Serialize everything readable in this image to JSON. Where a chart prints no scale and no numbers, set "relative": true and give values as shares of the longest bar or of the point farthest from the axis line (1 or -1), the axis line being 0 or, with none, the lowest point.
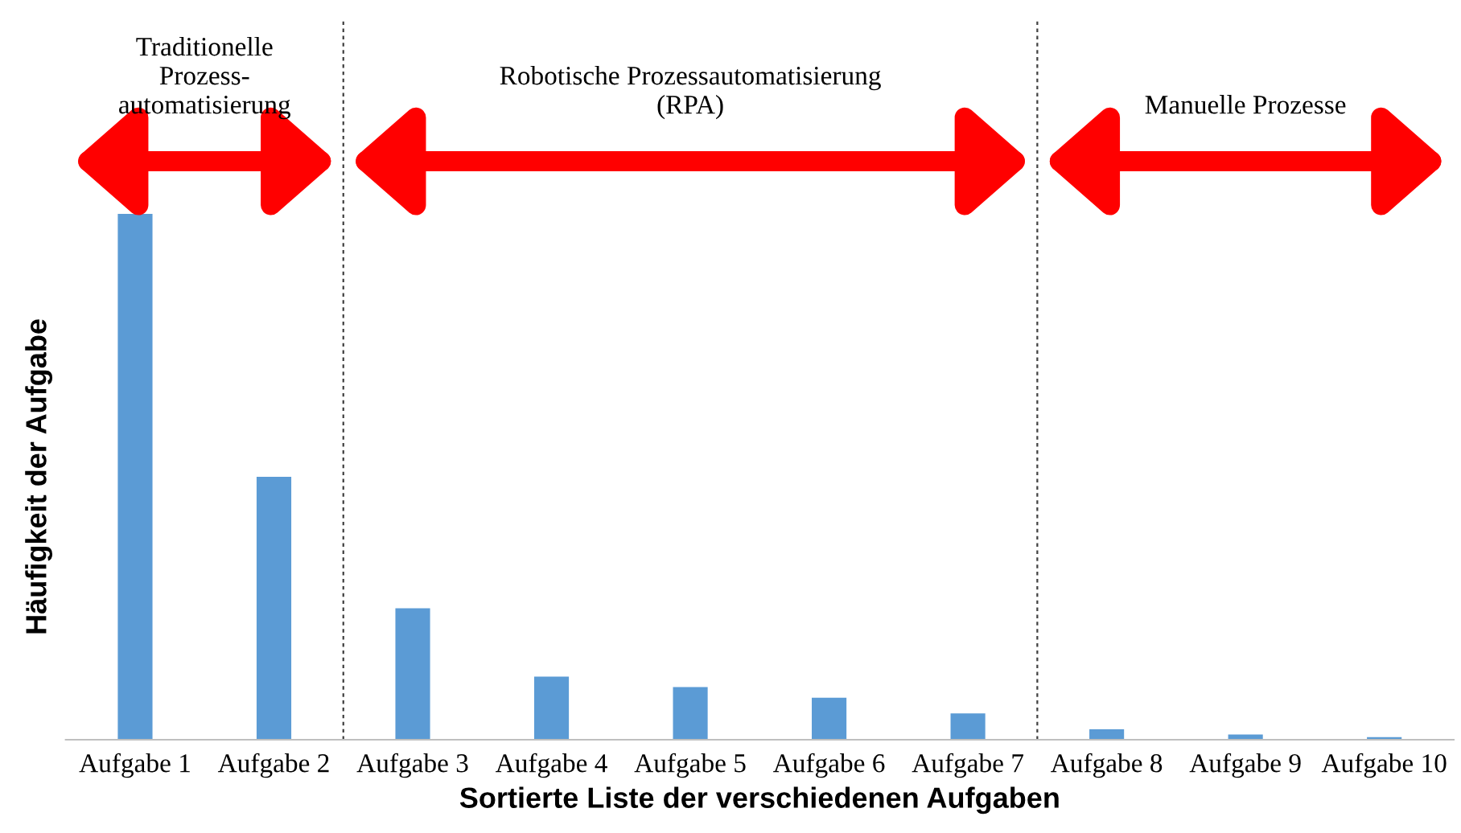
{
  "chart_data": {
    "type": "bar",
    "relative": true,
    "xlabel": "Sortierte Liste der verschiedenen Aufgaben",
    "ylabel": "Häufigkeit der Aufgabe",
    "categories": [
      "Aufgabe 1",
      "Aufgabe 2",
      "Aufgabe 3",
      "Aufgabe 4",
      "Aufgabe 5",
      "Aufgabe 6",
      "Aufgabe 7",
      "Aufgabe 8",
      "Aufgabe 9",
      "Aufgabe 10"
    ],
    "values": [
      1,
      0.5,
      0.25,
      0.12,
      0.1,
      0.08,
      0.05,
      0.02,
      0.01,
      0.005
    ],
    "color": "#5b9bd5",
    "annotations": [
      "Traditionelle\nProzess-\nautomatisierung",
      "Robotische Prozessautomatisierung\n(RPA)",
      "Manuelle Prozesse"
    ]
  }
}
